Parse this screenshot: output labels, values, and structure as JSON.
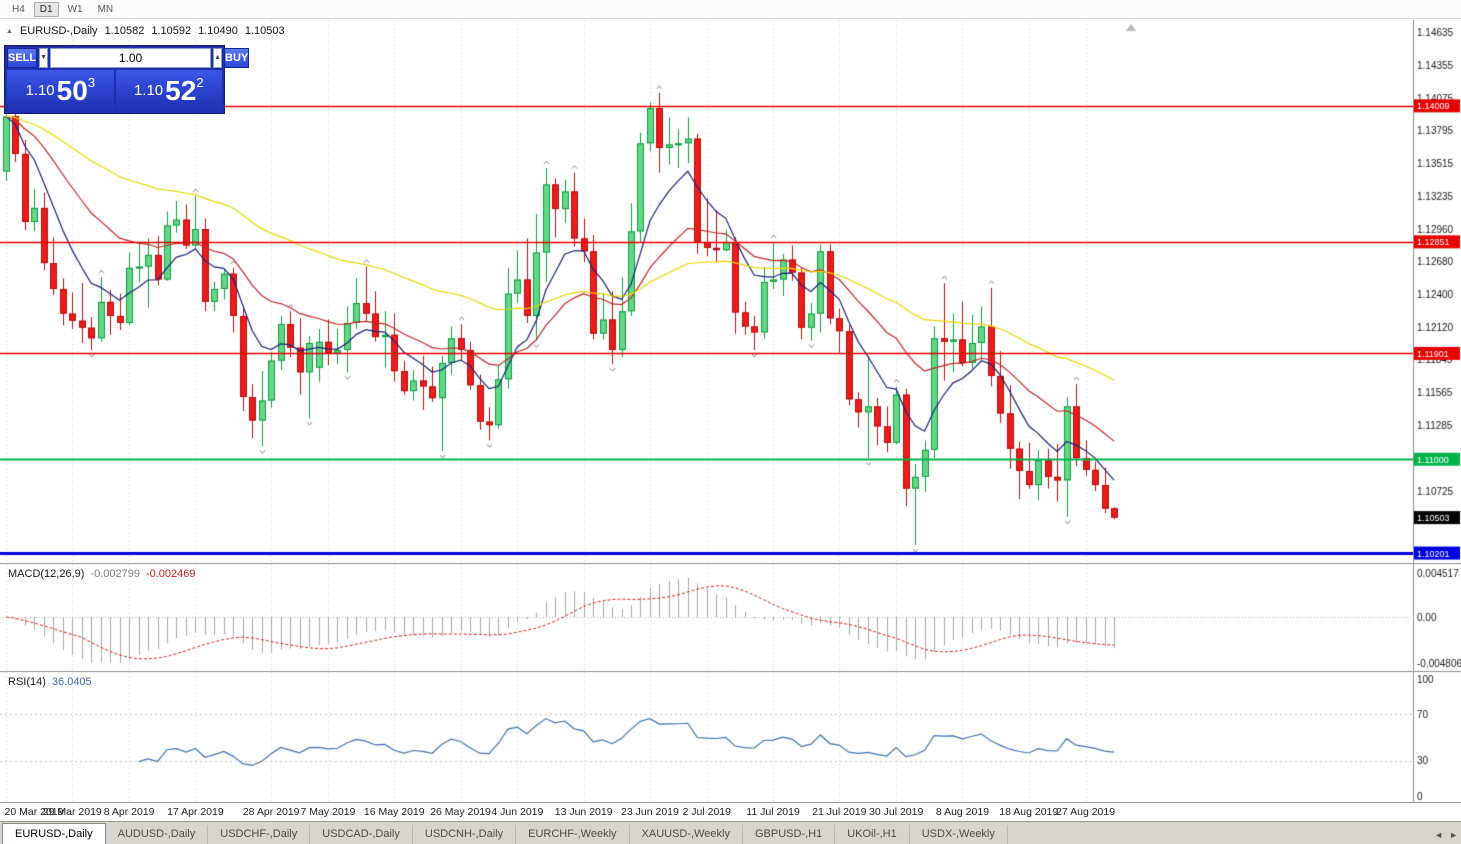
{
  "toolbar": {
    "timeframes": [
      {
        "label": "H4",
        "active": false
      },
      {
        "label": "D1",
        "active": true
      },
      {
        "label": "W1",
        "active": false
      },
      {
        "label": "MN",
        "active": false
      }
    ]
  },
  "chart_header": {
    "toggle_icon": "▲",
    "symbol_period": "EURUSD-,Daily",
    "open": "1.10582",
    "high": "1.10592",
    "low": "1.10490",
    "close": "1.10503"
  },
  "one_click": {
    "sell_label": "SELL",
    "buy_label": "BUY",
    "volume": "1.00",
    "down_arrow": "▼",
    "up_arrow": "▲",
    "sell_price": {
      "big": "1.10",
      "pips": "50",
      "sub": "3"
    },
    "buy_price": {
      "big": "1.10",
      "pips": "52",
      "sub": "2"
    }
  },
  "chart_data": {
    "type": "candlestick",
    "symbol": "EURUSD-",
    "timeframe": "Daily",
    "title": "EURUSD-,Daily",
    "price_axis": {
      "top": 1.1474,
      "bottom": 1.10125,
      "ticks": [
        "1.14635",
        "1.14355",
        "1.14075",
        "1.13795",
        "1.13515",
        "1.13235",
        "1.12960",
        "1.12680",
        "1.12400",
        "1.12120",
        "1.11845",
        "1.11565",
        "1.11285",
        "1.10725"
      ]
    },
    "x_labels": [
      {
        "label": "20 Mar 2019",
        "index": 0
      },
      {
        "label": "29 Mar 2019",
        "index": 7
      },
      {
        "label": "8 Apr 2019",
        "index": 13
      },
      {
        "label": "17 Apr 2019",
        "index": 20
      },
      {
        "label": "28 Apr 2019",
        "index": 28
      },
      {
        "label": "7 May 2019",
        "index": 34
      },
      {
        "label": "16 May 2019",
        "index": 41
      },
      {
        "label": "26 May 2019",
        "index": 48
      },
      {
        "label": "4 Jun 2019",
        "index": 54
      },
      {
        "label": "13 Jun 2019",
        "index": 61
      },
      {
        "label": "23 Jun 2019",
        "index": 68
      },
      {
        "label": "2 Jul 2019",
        "index": 74
      },
      {
        "label": "11 Jul 2019",
        "index": 81
      },
      {
        "label": "21 Jul 2019",
        "index": 88
      },
      {
        "label": "30 Jul 2019",
        "index": 94
      },
      {
        "label": "8 Aug 2019",
        "index": 101
      },
      {
        "label": "18 Aug 2019",
        "index": 108
      },
      {
        "label": "27 Aug 2019",
        "index": 114
      }
    ],
    "candles": [
      [
        1.1345,
        1.14,
        1.1337,
        1.1392
      ],
      [
        1.1392,
        1.1397,
        1.1353,
        1.136
      ],
      [
        1.136,
        1.1372,
        1.1295,
        1.1302
      ],
      [
        1.1302,
        1.133,
        1.1294,
        1.1314
      ],
      [
        1.1314,
        1.1327,
        1.1261,
        1.1267
      ],
      [
        1.1267,
        1.1289,
        1.124,
        1.1245
      ],
      [
        1.1245,
        1.1254,
        1.1214,
        1.1224
      ],
      [
        1.1224,
        1.1242,
        1.1211,
        1.1218
      ],
      [
        1.1218,
        1.125,
        1.1199,
        1.1212
      ],
      [
        1.1212,
        1.1221,
        1.1193,
        1.1203
      ],
      [
        1.1203,
        1.1255,
        1.12,
        1.1234
      ],
      [
        1.1234,
        1.1244,
        1.1206,
        1.1222
      ],
      [
        1.1222,
        1.1241,
        1.121,
        1.1216
      ],
      [
        1.1216,
        1.1276,
        1.1214,
        1.1263
      ],
      [
        1.1263,
        1.1284,
        1.1251,
        1.1264
      ],
      [
        1.1264,
        1.1288,
        1.1229,
        1.1274
      ],
      [
        1.1274,
        1.129,
        1.1248,
        1.1253
      ],
      [
        1.1253,
        1.1311,
        1.1252,
        1.1299
      ],
      [
        1.1299,
        1.132,
        1.1293,
        1.1304
      ],
      [
        1.1304,
        1.1317,
        1.1279,
        1.1282
      ],
      [
        1.1282,
        1.1324,
        1.128,
        1.1296
      ],
      [
        1.1296,
        1.1305,
        1.1226,
        1.1234
      ],
      [
        1.1234,
        1.1251,
        1.1226,
        1.1245
      ],
      [
        1.1245,
        1.1262,
        1.1236,
        1.1258
      ],
      [
        1.1258,
        1.1263,
        1.1208,
        1.1222
      ],
      [
        1.1222,
        1.123,
        1.1141,
        1.1153
      ],
      [
        1.1153,
        1.1164,
        1.1118,
        1.1133
      ],
      [
        1.1133,
        1.1175,
        1.1111,
        1.115
      ],
      [
        1.115,
        1.1191,
        1.1144,
        1.1184
      ],
      [
        1.1184,
        1.1222,
        1.1176,
        1.1215
      ],
      [
        1.1215,
        1.1226,
        1.1187,
        1.1195
      ],
      [
        1.1195,
        1.122,
        1.1155,
        1.1174
      ],
      [
        1.1174,
        1.1205,
        1.1135,
        1.1199
      ],
      [
        1.1178,
        1.1211,
        1.1166,
        1.12
      ],
      [
        1.12,
        1.1219,
        1.118,
        1.119
      ],
      [
        1.119,
        1.1211,
        1.1181,
        1.1193
      ],
      [
        1.1193,
        1.123,
        1.1174,
        1.1216
      ],
      [
        1.1216,
        1.1254,
        1.1211,
        1.1233
      ],
      [
        1.1233,
        1.1264,
        1.1218,
        1.1224
      ],
      [
        1.1224,
        1.1243,
        1.12,
        1.1204
      ],
      [
        1.1204,
        1.1226,
        1.1178,
        1.1206
      ],
      [
        1.1206,
        1.1224,
        1.1166,
        1.1175
      ],
      [
        1.1175,
        1.1184,
        1.1155,
        1.1158
      ],
      [
        1.1158,
        1.1176,
        1.115,
        1.1167
      ],
      [
        1.1167,
        1.1188,
        1.1142,
        1.1162
      ],
      [
        1.1162,
        1.1179,
        1.1149,
        1.1152
      ],
      [
        1.1152,
        1.1188,
        1.1107,
        1.1182
      ],
      [
        1.1182,
        1.1213,
        1.1172,
        1.1203
      ],
      [
        1.1203,
        1.1215,
        1.1184,
        1.1193
      ],
      [
        1.1193,
        1.12,
        1.1159,
        1.1163
      ],
      [
        1.1163,
        1.1172,
        1.1125,
        1.1132
      ],
      [
        1.1132,
        1.1144,
        1.1116,
        1.1129
      ],
      [
        1.1129,
        1.118,
        1.1126,
        1.1168
      ],
      [
        1.1168,
        1.1263,
        1.116,
        1.1241
      ],
      [
        1.1241,
        1.1278,
        1.1233,
        1.1253
      ],
      [
        1.1253,
        1.1288,
        1.1216,
        1.1222
      ],
      [
        1.1222,
        1.1309,
        1.1201,
        1.1276
      ],
      [
        1.1276,
        1.1348,
        1.1251,
        1.1334
      ],
      [
        1.1334,
        1.1339,
        1.1289,
        1.1313
      ],
      [
        1.1313,
        1.1338,
        1.1301,
        1.1328
      ],
      [
        1.1328,
        1.1344,
        1.1281,
        1.1288
      ],
      [
        1.1288,
        1.1305,
        1.1268,
        1.1277
      ],
      [
        1.1277,
        1.1291,
        1.1202,
        1.1207
      ],
      [
        1.1207,
        1.1242,
        1.1202,
        1.1219
      ],
      [
        1.1219,
        1.1243,
        1.1181,
        1.1193
      ],
      [
        1.1193,
        1.1255,
        1.1187,
        1.1226
      ],
      [
        1.1226,
        1.1318,
        1.1222,
        1.1294
      ],
      [
        1.1294,
        1.1378,
        1.1285,
        1.1369
      ],
      [
        1.1369,
        1.1404,
        1.1362,
        1.1399
      ],
      [
        1.1399,
        1.1412,
        1.1344,
        1.1365
      ],
      [
        1.1365,
        1.1391,
        1.1351,
        1.1368
      ],
      [
        1.1368,
        1.1381,
        1.1348,
        1.1369
      ],
      [
        1.1369,
        1.1391,
        1.1352,
        1.1373
      ],
      [
        1.1373,
        1.1377,
        1.1275,
        1.1285
      ],
      [
        1.1285,
        1.1322,
        1.1273,
        1.128
      ],
      [
        1.128,
        1.1312,
        1.1268,
        1.1278
      ],
      [
        1.1278,
        1.1295,
        1.1277,
        1.1285
      ],
      [
        1.1285,
        1.1289,
        1.1207,
        1.1225
      ],
      [
        1.1225,
        1.1234,
        1.1206,
        1.1213
      ],
      [
        1.1213,
        1.1222,
        1.1193,
        1.1208
      ],
      [
        1.1208,
        1.1264,
        1.1203,
        1.1251
      ],
      [
        1.1251,
        1.1285,
        1.1245,
        1.1253
      ],
      [
        1.1253,
        1.1275,
        1.1239,
        1.127
      ],
      [
        1.127,
        1.1282,
        1.1252,
        1.1259
      ],
      [
        1.1259,
        1.1263,
        1.1202,
        1.1212
      ],
      [
        1.1212,
        1.1233,
        1.1201,
        1.1224
      ],
      [
        1.1224,
        1.1283,
        1.1208,
        1.1277
      ],
      [
        1.1277,
        1.1283,
        1.1215,
        1.122
      ],
      [
        1.122,
        1.1228,
        1.1191,
        1.1209
      ],
      [
        1.1209,
        1.1214,
        1.1146,
        1.1151
      ],
      [
        1.1151,
        1.1157,
        1.1127,
        1.114
      ],
      [
        1.114,
        1.1188,
        1.1101,
        1.1145
      ],
      [
        1.1145,
        1.1152,
        1.1112,
        1.1128
      ],
      [
        1.1128,
        1.1145,
        1.1106,
        1.1114
      ],
      [
        1.1114,
        1.1162,
        1.1113,
        1.1155
      ],
      [
        1.1155,
        1.116,
        1.106,
        1.1075
      ],
      [
        1.1075,
        1.1096,
        1.1027,
        1.1085
      ],
      [
        1.1085,
        1.1116,
        1.1072,
        1.1108
      ],
      [
        1.1108,
        1.1213,
        1.1101,
        1.1203
      ],
      [
        1.1203,
        1.125,
        1.1167,
        1.12
      ],
      [
        1.12,
        1.1224,
        1.1174,
        1.1202
      ],
      [
        1.1202,
        1.1234,
        1.1179,
        1.1182
      ],
      [
        1.1182,
        1.1223,
        1.1177,
        1.1199
      ],
      [
        1.1199,
        1.123,
        1.1184,
        1.1213
      ],
      [
        1.1213,
        1.1246,
        1.1162,
        1.1171
      ],
      [
        1.1171,
        1.1192,
        1.1131,
        1.1139
      ],
      [
        1.1139,
        1.1163,
        1.1092,
        1.1109
      ],
      [
        1.1109,
        1.1115,
        1.1066,
        1.109
      ],
      [
        1.109,
        1.1114,
        1.1075,
        1.1078
      ],
      [
        1.1078,
        1.1108,
        1.1065,
        1.1099
      ],
      [
        1.1099,
        1.1109,
        1.1075,
        1.1085
      ],
      [
        1.1085,
        1.1113,
        1.1064,
        1.1082
      ],
      [
        1.1082,
        1.1153,
        1.1051,
        1.1145
      ],
      [
        1.1145,
        1.1164,
        1.1094,
        1.1101
      ],
      [
        1.1101,
        1.1116,
        1.1086,
        1.1091
      ],
      [
        1.1091,
        1.1098,
        1.1073,
        1.1078
      ],
      [
        1.1078,
        1.1093,
        1.1054,
        1.1058
      ],
      [
        1.10582,
        1.10592,
        1.1049,
        1.10503
      ]
    ],
    "h_lines": [
      {
        "price": 1.14009,
        "label": "1.14009",
        "color": "#e60000",
        "width": 1.4
      },
      {
        "price": 1.12851,
        "label": "1.12851",
        "color": "#e60000",
        "width": 1.4
      },
      {
        "price": 1.11901,
        "label": "1.11901",
        "color": "#e60000",
        "width": 1.4
      },
      {
        "price": 1.11,
        "label": "1.11000",
        "color": "#00b44a",
        "width": 2
      },
      {
        "price": 1.10201,
        "label": "1.10201",
        "color": "#0000e0",
        "width": 3
      }
    ],
    "current_price": {
      "value": 1.10503,
      "label": "1.10503",
      "color": "#000000"
    },
    "colors": {
      "bull_fill": "#63d688",
      "bull_border": "#0f9d3f",
      "bear_fill": "#ea1c1c",
      "bear_border": "#b30f0f",
      "background": "#ffffff",
      "grid": "#d9d9d9",
      "fractal": "#8a8a8a"
    },
    "moving_averages": [
      {
        "period": 8,
        "color": "#1a237e"
      },
      {
        "period": 21,
        "color": "#c62828"
      },
      {
        "period": 55,
        "color": "#f2d400"
      }
    ],
    "indicators": {
      "macd": {
        "label": "MACD(12,26,9)",
        "value_main": "-0.002799",
        "value_signal": "-0.002469",
        "fast": 12,
        "slow": 26,
        "signal": 9,
        "axis": [
          "0.004517",
          "0.00",
          "-0.004806"
        ],
        "histogram_color": "#a8a8a8",
        "signal_color": "#e02020"
      },
      "rsi": {
        "label": "RSI(14)",
        "value": "36.0405",
        "period": 14,
        "axis": [
          "100",
          "70",
          "30",
          "0"
        ],
        "levels": [
          70,
          30
        ],
        "line_color": "#3a77b5"
      }
    }
  },
  "tabs": {
    "items": [
      {
        "label": "EURUSD-,Daily",
        "active": true
      },
      {
        "label": "AUDUSD-,Daily",
        "active": false
      },
      {
        "label": "USDCHF-,Daily",
        "active": false
      },
      {
        "label": "USDCAD-,Daily",
        "active": false
      },
      {
        "label": "USDCNH-,Daily",
        "active": false
      },
      {
        "label": "EURCHF-,Weekly",
        "active": false
      },
      {
        "label": "XAUUSD-,Weekly",
        "active": false
      },
      {
        "label": "GBPUSD-,H1",
        "active": false
      },
      {
        "label": "UKOil-,H1",
        "active": false
      },
      {
        "label": "USDX-,Weekly",
        "active": false
      }
    ],
    "scroll_left": "◄",
    "scroll_right": "►"
  }
}
